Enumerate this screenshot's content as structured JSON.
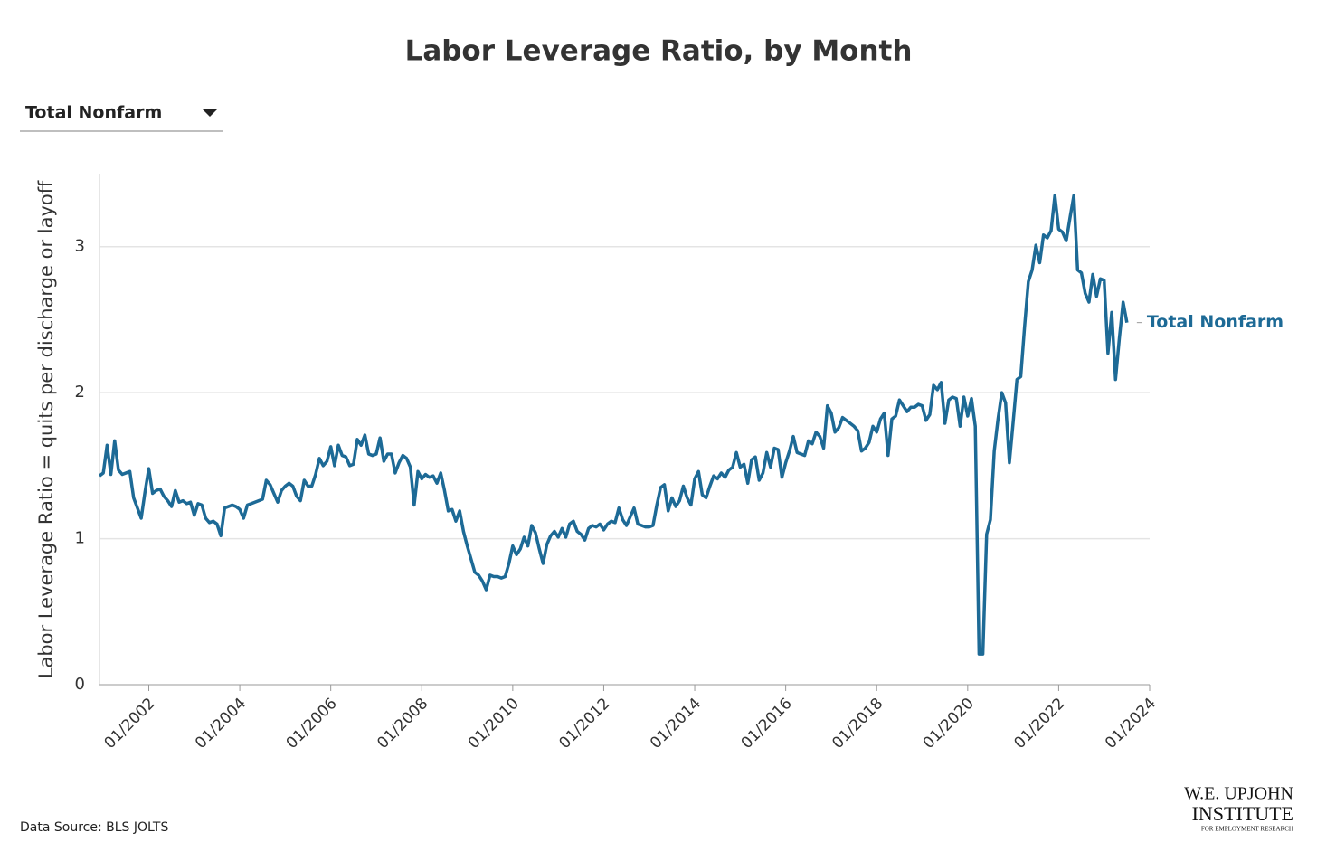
{
  "dropdown": {
    "selected": "Total Nonfarm"
  },
  "logo": {
    "line1": "W.E. UPJOHN",
    "line2": "INSTITUTE",
    "line3": "FOR EMPLOYMENT RESEARCH"
  },
  "chart_data": {
    "type": "line",
    "title": "Labor Leverage Ratio, by Month",
    "y_label": "Labor Leverage Ratio = quits per discharge or layoff",
    "source": "Data Source: BLS JOLTS",
    "x": [
      "12/2000",
      "01/2001",
      "02/2001",
      "03/2001",
      "04/2001",
      "05/2001",
      "06/2001",
      "07/2001",
      "08/2001",
      "09/2001",
      "10/2001",
      "11/2001",
      "12/2001",
      "01/2002",
      "02/2002",
      "03/2002",
      "04/2002",
      "05/2002",
      "06/2002",
      "07/2002",
      "08/2002",
      "09/2002",
      "10/2002",
      "11/2002",
      "12/2002",
      "01/2003",
      "02/2003",
      "03/2003",
      "04/2003",
      "05/2003",
      "06/2003",
      "07/2003",
      "08/2003",
      "09/2003",
      "10/2003",
      "11/2003",
      "12/2003",
      "01/2004",
      "02/2004",
      "03/2004",
      "04/2004",
      "05/2004",
      "06/2004",
      "07/2004",
      "08/2004",
      "09/2004",
      "10/2004",
      "11/2004",
      "12/2004",
      "01/2005",
      "02/2005",
      "03/2005",
      "04/2005",
      "05/2005",
      "06/2005",
      "07/2005",
      "08/2005",
      "09/2005",
      "10/2005",
      "11/2005",
      "12/2005",
      "01/2006",
      "02/2006",
      "03/2006",
      "04/2006",
      "05/2006",
      "06/2006",
      "07/2006",
      "08/2006",
      "09/2006",
      "10/2006",
      "11/2006",
      "12/2006",
      "01/2007",
      "02/2007",
      "03/2007",
      "04/2007",
      "05/2007",
      "06/2007",
      "07/2007",
      "08/2007",
      "09/2007",
      "10/2007",
      "11/2007",
      "12/2007",
      "01/2008",
      "02/2008",
      "03/2008",
      "04/2008",
      "05/2008",
      "06/2008",
      "07/2008",
      "08/2008",
      "09/2008",
      "10/2008",
      "11/2008",
      "12/2008",
      "01/2009",
      "02/2009",
      "03/2009",
      "04/2009",
      "05/2009",
      "06/2009",
      "07/2009",
      "08/2009",
      "09/2009",
      "10/2009",
      "11/2009",
      "12/2009",
      "01/2010",
      "02/2010",
      "03/2010",
      "04/2010",
      "05/2010",
      "06/2010",
      "07/2010",
      "08/2010",
      "09/2010",
      "10/2010",
      "11/2010",
      "12/2010",
      "01/2011",
      "02/2011",
      "03/2011",
      "04/2011",
      "05/2011",
      "06/2011",
      "07/2011",
      "08/2011",
      "09/2011",
      "10/2011",
      "11/2011",
      "12/2011",
      "01/2012",
      "02/2012",
      "03/2012",
      "04/2012",
      "05/2012",
      "06/2012",
      "07/2012",
      "08/2012",
      "09/2012",
      "10/2012",
      "11/2012",
      "12/2012",
      "01/2013",
      "02/2013",
      "03/2013",
      "04/2013",
      "05/2013",
      "06/2013",
      "07/2013",
      "08/2013",
      "09/2013",
      "10/2013",
      "11/2013",
      "12/2013",
      "01/2014",
      "02/2014",
      "03/2014",
      "04/2014",
      "05/2014",
      "06/2014",
      "07/2014",
      "08/2014",
      "09/2014",
      "10/2014",
      "11/2014",
      "12/2014",
      "01/2015",
      "02/2015",
      "03/2015",
      "04/2015",
      "05/2015",
      "06/2015",
      "07/2015",
      "08/2015",
      "09/2015",
      "10/2015",
      "11/2015",
      "12/2015",
      "01/2016",
      "02/2016",
      "03/2016",
      "04/2016",
      "05/2016",
      "06/2016",
      "07/2016",
      "08/2016",
      "09/2016",
      "10/2016",
      "11/2016",
      "12/2016",
      "01/2017",
      "02/2017",
      "03/2017",
      "04/2017",
      "05/2017",
      "06/2017",
      "07/2017",
      "08/2017",
      "09/2017",
      "10/2017",
      "11/2017",
      "12/2017",
      "01/2018",
      "02/2018",
      "03/2018",
      "04/2018",
      "05/2018",
      "06/2018",
      "07/2018",
      "08/2018",
      "09/2018",
      "10/2018",
      "11/2018",
      "12/2018",
      "01/2019",
      "02/2019",
      "03/2019",
      "04/2019",
      "05/2019",
      "06/2019",
      "07/2019",
      "08/2019",
      "09/2019",
      "10/2019",
      "11/2019",
      "12/2019",
      "01/2020",
      "02/2020",
      "03/2020",
      "04/2020",
      "05/2020",
      "06/2020",
      "07/2020",
      "08/2020",
      "09/2020",
      "10/2020",
      "11/2020",
      "12/2020",
      "01/2021",
      "02/2021",
      "03/2021",
      "04/2021",
      "05/2021",
      "06/2021",
      "07/2021",
      "08/2021",
      "09/2021",
      "10/2021",
      "11/2021",
      "12/2021",
      "01/2022",
      "02/2022",
      "03/2022",
      "04/2022",
      "05/2022",
      "06/2022",
      "07/2022",
      "08/2022",
      "09/2022",
      "10/2022",
      "11/2022",
      "12/2022",
      "01/2023",
      "02/2023",
      "03/2023",
      "04/2023",
      "05/2023",
      "06/2023",
      "07/2023"
    ],
    "series": [
      {
        "name": "Total Nonfarm",
        "color": "#1d6a96",
        "values": [
          1.43,
          1.45,
          1.64,
          1.44,
          1.67,
          1.47,
          1.44,
          1.45,
          1.46,
          1.28,
          1.21,
          1.14,
          1.32,
          1.48,
          1.31,
          1.33,
          1.34,
          1.29,
          1.26,
          1.22,
          1.33,
          1.25,
          1.26,
          1.24,
          1.25,
          1.16,
          1.24,
          1.23,
          1.14,
          1.11,
          1.12,
          1.1,
          1.02,
          1.21,
          1.22,
          1.23,
          1.22,
          1.2,
          1.14,
          1.23,
          1.24,
          1.25,
          1.26,
          1.27,
          1.4,
          1.37,
          1.31,
          1.25,
          1.33,
          1.36,
          1.38,
          1.36,
          1.29,
          1.26,
          1.4,
          1.36,
          1.36,
          1.44,
          1.55,
          1.5,
          1.53,
          1.63,
          1.5,
          1.64,
          1.57,
          1.56,
          1.5,
          1.51,
          1.68,
          1.64,
          1.71,
          1.58,
          1.57,
          1.58,
          1.69,
          1.53,
          1.58,
          1.58,
          1.45,
          1.52,
          1.57,
          1.55,
          1.49,
          1.23,
          1.46,
          1.41,
          1.44,
          1.42,
          1.43,
          1.38,
          1.45,
          1.33,
          1.19,
          1.2,
          1.12,
          1.19,
          1.05,
          0.95,
          0.86,
          0.77,
          0.75,
          0.71,
          0.65,
          0.75,
          0.74,
          0.74,
          0.73,
          0.74,
          0.83,
          0.95,
          0.89,
          0.93,
          1.01,
          0.95,
          1.09,
          1.04,
          0.93,
          0.83,
          0.96,
          1.02,
          1.05,
          1.01,
          1.07,
          1.01,
          1.1,
          1.12,
          1.05,
          1.03,
          0.99,
          1.07,
          1.09,
          1.08,
          1.1,
          1.06,
          1.1,
          1.12,
          1.11,
          1.21,
          1.13,
          1.09,
          1.15,
          1.21,
          1.1,
          1.09,
          1.08,
          1.08,
          1.09,
          1.23,
          1.35,
          1.37,
          1.19,
          1.28,
          1.22,
          1.26,
          1.36,
          1.28,
          1.23,
          1.41,
          1.46,
          1.3,
          1.28,
          1.36,
          1.43,
          1.41,
          1.45,
          1.42,
          1.47,
          1.49,
          1.59,
          1.49,
          1.51,
          1.38,
          1.54,
          1.56,
          1.4,
          1.45,
          1.59,
          1.49,
          1.62,
          1.61,
          1.42,
          1.52,
          1.6,
          1.7,
          1.59,
          1.58,
          1.57,
          1.67,
          1.65,
          1.73,
          1.7,
          1.62,
          1.91,
          1.86,
          1.73,
          1.76,
          1.83,
          1.81,
          1.79,
          1.77,
          1.74,
          1.6,
          1.62,
          1.66,
          1.77,
          1.73,
          1.82,
          1.86,
          1.57,
          1.82,
          1.84,
          1.95,
          1.91,
          1.87,
          1.9,
          1.9,
          1.92,
          1.91,
          1.81,
          1.85,
          2.05,
          2.02,
          2.07,
          1.79,
          1.95,
          1.97,
          1.96,
          1.77,
          1.97,
          1.84,
          1.96,
          1.77,
          0.21,
          0.21,
          1.03,
          1.13,
          1.6,
          1.82,
          2.0,
          1.93,
          1.52,
          1.8,
          2.09,
          2.11,
          2.45,
          2.76,
          2.84,
          3.01,
          2.89,
          3.08,
          3.06,
          3.11,
          3.35,
          3.12,
          3.1,
          3.04,
          3.2,
          3.35,
          2.84,
          2.82,
          2.68,
          2.62,
          2.81,
          2.66,
          2.78,
          2.77,
          2.27,
          2.55,
          2.09,
          2.37,
          2.62,
          2.48
        ]
      }
    ],
    "xlim": [
      "12/2000",
      "01/2024"
    ],
    "xticks": [
      "01/2002",
      "01/2004",
      "01/2006",
      "01/2008",
      "01/2010",
      "01/2012",
      "01/2014",
      "01/2016",
      "01/2018",
      "01/2020",
      "01/2022",
      "01/2024"
    ],
    "ylim": [
      0,
      3.5
    ],
    "yticks": [
      0,
      1,
      2,
      3
    ],
    "grid": true
  }
}
